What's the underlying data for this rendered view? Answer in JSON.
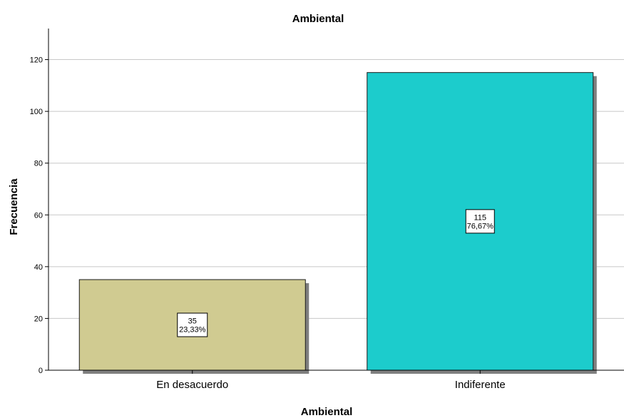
{
  "chart_data": {
    "type": "bar",
    "title": "Ambiental",
    "xlabel": "Ambiental",
    "ylabel": "Frecuencia",
    "categories": [
      "En desacuerdo",
      "Indiferente"
    ],
    "values": [
      35,
      115
    ],
    "percent_labels": [
      "23,33%",
      "76,67%"
    ],
    "ylim": [
      0,
      132
    ],
    "yticks": [
      0,
      20,
      40,
      60,
      80,
      100,
      120
    ],
    "grid": true,
    "colors": [
      "#d0cb91",
      "#1ccccc"
    ],
    "shadow_color": "#7f7f7f",
    "legend": "none"
  }
}
